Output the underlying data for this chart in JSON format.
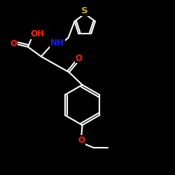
{
  "background_color": "#000000",
  "O_color": "#ff2200",
  "N_color": "#1a1aff",
  "S_color": "#ccaa00",
  "bond_color": "#ffffff",
  "bond_width": 1.5,
  "font_size": 8.5,
  "fig_size": [
    2.5,
    2.5
  ],
  "dpi": 100,
  "xlim": [
    0,
    10
  ],
  "ylim": [
    0,
    10
  ]
}
